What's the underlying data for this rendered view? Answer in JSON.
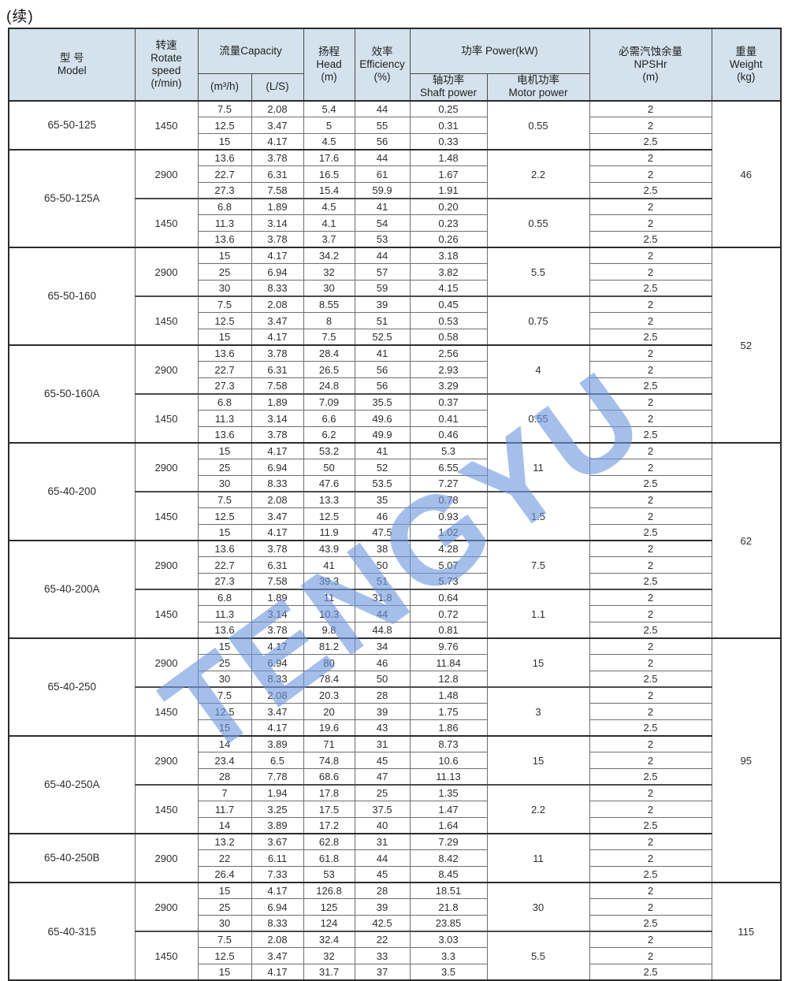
{
  "title": "(续)",
  "watermark": "TENGYU",
  "colors": {
    "header_bg": "#d3e2ec",
    "border_heavy": "#2b2b2b",
    "border_light": "#6e6e6e",
    "watermark_blue": "#6e98de",
    "text": "#2e2e2e"
  },
  "header": {
    "model": "型  号\nModel",
    "speed": "转速\nRotate\nspeed\n(r/min)",
    "capacity": "流量Capacity",
    "capacity_m3h": "(m³/h)",
    "capacity_ls": "(L/S)",
    "head": "扬程\nHead\n(m)",
    "efficiency": "效率\nEfficiency\n(%)",
    "power": "功率 Power(kW)",
    "shaft_power": "轴功率\nShaft power",
    "motor_power": "电机功率\nMotor power",
    "npshr": "必需汽蚀余量\nNPSHr\n(m)",
    "weight": "重量\nWeight\n(kg)"
  },
  "table": {
    "weights": [
      {
        "value": "46",
        "rows": 9
      },
      {
        "value": "52",
        "rows": 12
      },
      {
        "value": "62",
        "rows": 12
      },
      {
        "value": "95",
        "rows": 15
      },
      {
        "value": "115",
        "rows": 6
      }
    ],
    "models": [
      {
        "name": "65-50-125",
        "groups": [
          {
            "speed": "1450",
            "motor": "0.55",
            "rows": [
              [
                "7.5",
                "2.08",
                "5.4",
                "44",
                "0.25",
                "2"
              ],
              [
                "12.5",
                "3.47",
                "5",
                "55",
                "0.31",
                "2"
              ],
              [
                "15",
                "4.17",
                "4.5",
                "56",
                "0.33",
                "2.5"
              ]
            ]
          }
        ]
      },
      {
        "name": "65-50-125A",
        "groups": [
          {
            "speed": "2900",
            "motor": "2.2",
            "rows": [
              [
                "13.6",
                "3.78",
                "17.6",
                "44",
                "1.48",
                "2"
              ],
              [
                "22.7",
                "6.31",
                "16.5",
                "61",
                "1.67",
                "2"
              ],
              [
                "27.3",
                "7.58",
                "15.4",
                "59.9",
                "1.91",
                "2.5"
              ]
            ]
          },
          {
            "speed": "1450",
            "motor": "0.55",
            "rows": [
              [
                "6.8",
                "1.89",
                "4.5",
                "41",
                "0.20",
                "2"
              ],
              [
                "11.3",
                "3.14",
                "4.1",
                "54",
                "0.23",
                "2"
              ],
              [
                "13.6",
                "3.78",
                "3.7",
                "53",
                "0.26",
                "2.5"
              ]
            ]
          }
        ]
      },
      {
        "name": "65-50-160",
        "groups": [
          {
            "speed": "2900",
            "motor": "5.5",
            "rows": [
              [
                "15",
                "4.17",
                "34.2",
                "44",
                "3.18",
                "2"
              ],
              [
                "25",
                "6.94",
                "32",
                "57",
                "3.82",
                "2"
              ],
              [
                "30",
                "8.33",
                "30",
                "59",
                "4.15",
                "2.5"
              ]
            ]
          },
          {
            "speed": "1450",
            "motor": "0.75",
            "rows": [
              [
                "7.5",
                "2.08",
                "8.55",
                "39",
                "0.45",
                "2"
              ],
              [
                "12.5",
                "3.47",
                "8",
                "51",
                "0.53",
                "2"
              ],
              [
                "15",
                "4.17",
                "7.5",
                "52.5",
                "0.58",
                "2.5"
              ]
            ]
          }
        ]
      },
      {
        "name": "65-50-160A",
        "groups": [
          {
            "speed": "2900",
            "motor": "4",
            "rows": [
              [
                "13.6",
                "3.78",
                "28.4",
                "41",
                "2.56",
                "2"
              ],
              [
                "22.7",
                "6.31",
                "26.5",
                "56",
                "2.93",
                "2"
              ],
              [
                "27.3",
                "7.58",
                "24.8",
                "56",
                "3.29",
                "2.5"
              ]
            ]
          },
          {
            "speed": "1450",
            "motor": "0.55",
            "rows": [
              [
                "6.8",
                "1.89",
                "7.09",
                "35.5",
                "0.37",
                "2"
              ],
              [
                "11.3",
                "3.14",
                "6.6",
                "49.6",
                "0.41",
                "2"
              ],
              [
                "13.6",
                "3.78",
                "6.2",
                "49.9",
                "0.46",
                "2.5"
              ]
            ]
          }
        ]
      },
      {
        "name": "65-40-200",
        "groups": [
          {
            "speed": "2900",
            "motor": "11",
            "rows": [
              [
                "15",
                "4.17",
                "53.2",
                "41",
                "5.3",
                "2"
              ],
              [
                "25",
                "6.94",
                "50",
                "52",
                "6.55",
                "2"
              ],
              [
                "30",
                "8.33",
                "47.6",
                "53.5",
                "7.27",
                "2.5"
              ]
            ]
          },
          {
            "speed": "1450",
            "motor": "1.5",
            "rows": [
              [
                "7.5",
                "2.08",
                "13.3",
                "35",
                "0.78",
                "2"
              ],
              [
                "12.5",
                "3.47",
                "12.5",
                "46",
                "0.93",
                "2"
              ],
              [
                "15",
                "4.17",
                "11.9",
                "47.5",
                "1.02",
                "2.5"
              ]
            ]
          }
        ]
      },
      {
        "name": "65-40-200A",
        "groups": [
          {
            "speed": "2900",
            "motor": "7.5",
            "rows": [
              [
                "13.6",
                "3.78",
                "43.9",
                "38",
                "4.28",
                "2"
              ],
              [
                "22.7",
                "6.31",
                "41",
                "50",
                "5.07",
                "2"
              ],
              [
                "27.3",
                "7.58",
                "39.3",
                "51",
                "5.73",
                "2.5"
              ]
            ]
          },
          {
            "speed": "1450",
            "motor": "1.1",
            "rows": [
              [
                "6.8",
                "1.89",
                "11",
                "31.8",
                "0.64",
                "2"
              ],
              [
                "11.3",
                "3.14",
                "10.3",
                "44",
                "0.72",
                "2"
              ],
              [
                "13.6",
                "3.78",
                "9.8",
                "44.8",
                "0.81",
                "2.5"
              ]
            ]
          }
        ]
      },
      {
        "name": "65-40-250",
        "groups": [
          {
            "speed": "2900",
            "motor": "15",
            "rows": [
              [
                "15",
                "4.17",
                "81.2",
                "34",
                "9.76",
                "2"
              ],
              [
                "25",
                "6.94",
                "80",
                "46",
                "11.84",
                "2"
              ],
              [
                "30",
                "8.33",
                "78.4",
                "50",
                "12.8",
                "2.5"
              ]
            ]
          },
          {
            "speed": "1450",
            "motor": "3",
            "rows": [
              [
                "7.5",
                "2.08",
                "20.3",
                "28",
                "1.48",
                "2"
              ],
              [
                "12.5",
                "3.47",
                "20",
                "39",
                "1.75",
                "2"
              ],
              [
                "15",
                "4.17",
                "19.6",
                "43",
                "1.86",
                "2.5"
              ]
            ]
          }
        ]
      },
      {
        "name": "65-40-250A",
        "groups": [
          {
            "speed": "2900",
            "motor": "15",
            "rows": [
              [
                "14",
                "3.89",
                "71",
                "31",
                "8.73",
                "2"
              ],
              [
                "23.4",
                "6.5",
                "74.8",
                "45",
                "10.6",
                "2"
              ],
              [
                "28",
                "7.78",
                "68.6",
                "47",
                "11.13",
                "2.5"
              ]
            ]
          },
          {
            "speed": "1450",
            "motor": "2.2",
            "rows": [
              [
                "7",
                "1.94",
                "17.8",
                "25",
                "1.35",
                "2"
              ],
              [
                "11.7",
                "3.25",
                "17.5",
                "37.5",
                "1.47",
                "2"
              ],
              [
                "14",
                "3.89",
                "17.2",
                "40",
                "1.64",
                "2.5"
              ]
            ]
          }
        ]
      },
      {
        "name": "65-40-250B",
        "groups": [
          {
            "speed": "2900",
            "motor": "11",
            "rows": [
              [
                "13.2",
                "3.67",
                "62.8",
                "31",
                "7.29",
                "2"
              ],
              [
                "22",
                "6.11",
                "61.8",
                "44",
                "8.42",
                "2"
              ],
              [
                "26.4",
                "7.33",
                "53",
                "45",
                "8.45",
                "2.5"
              ]
            ]
          }
        ]
      },
      {
        "name": "65-40-315",
        "groups": [
          {
            "speed": "2900",
            "motor": "30",
            "rows": [
              [
                "15",
                "4.17",
                "126.8",
                "28",
                "18.51",
                "2"
              ],
              [
                "25",
                "6.94",
                "125",
                "39",
                "21.8",
                "2"
              ],
              [
                "30",
                "8.33",
                "124",
                "42.5",
                "23.85",
                "2.5"
              ]
            ]
          },
          {
            "speed": "1450",
            "motor": "5.5",
            "rows": [
              [
                "7.5",
                "2.08",
                "32.4",
                "22",
                "3.03",
                "2"
              ],
              [
                "12.5",
                "3.47",
                "32",
                "33",
                "3.3",
                "2"
              ],
              [
                "15",
                "4.17",
                "31.7",
                "37",
                "3.5",
                "2.5"
              ]
            ]
          }
        ]
      }
    ]
  }
}
